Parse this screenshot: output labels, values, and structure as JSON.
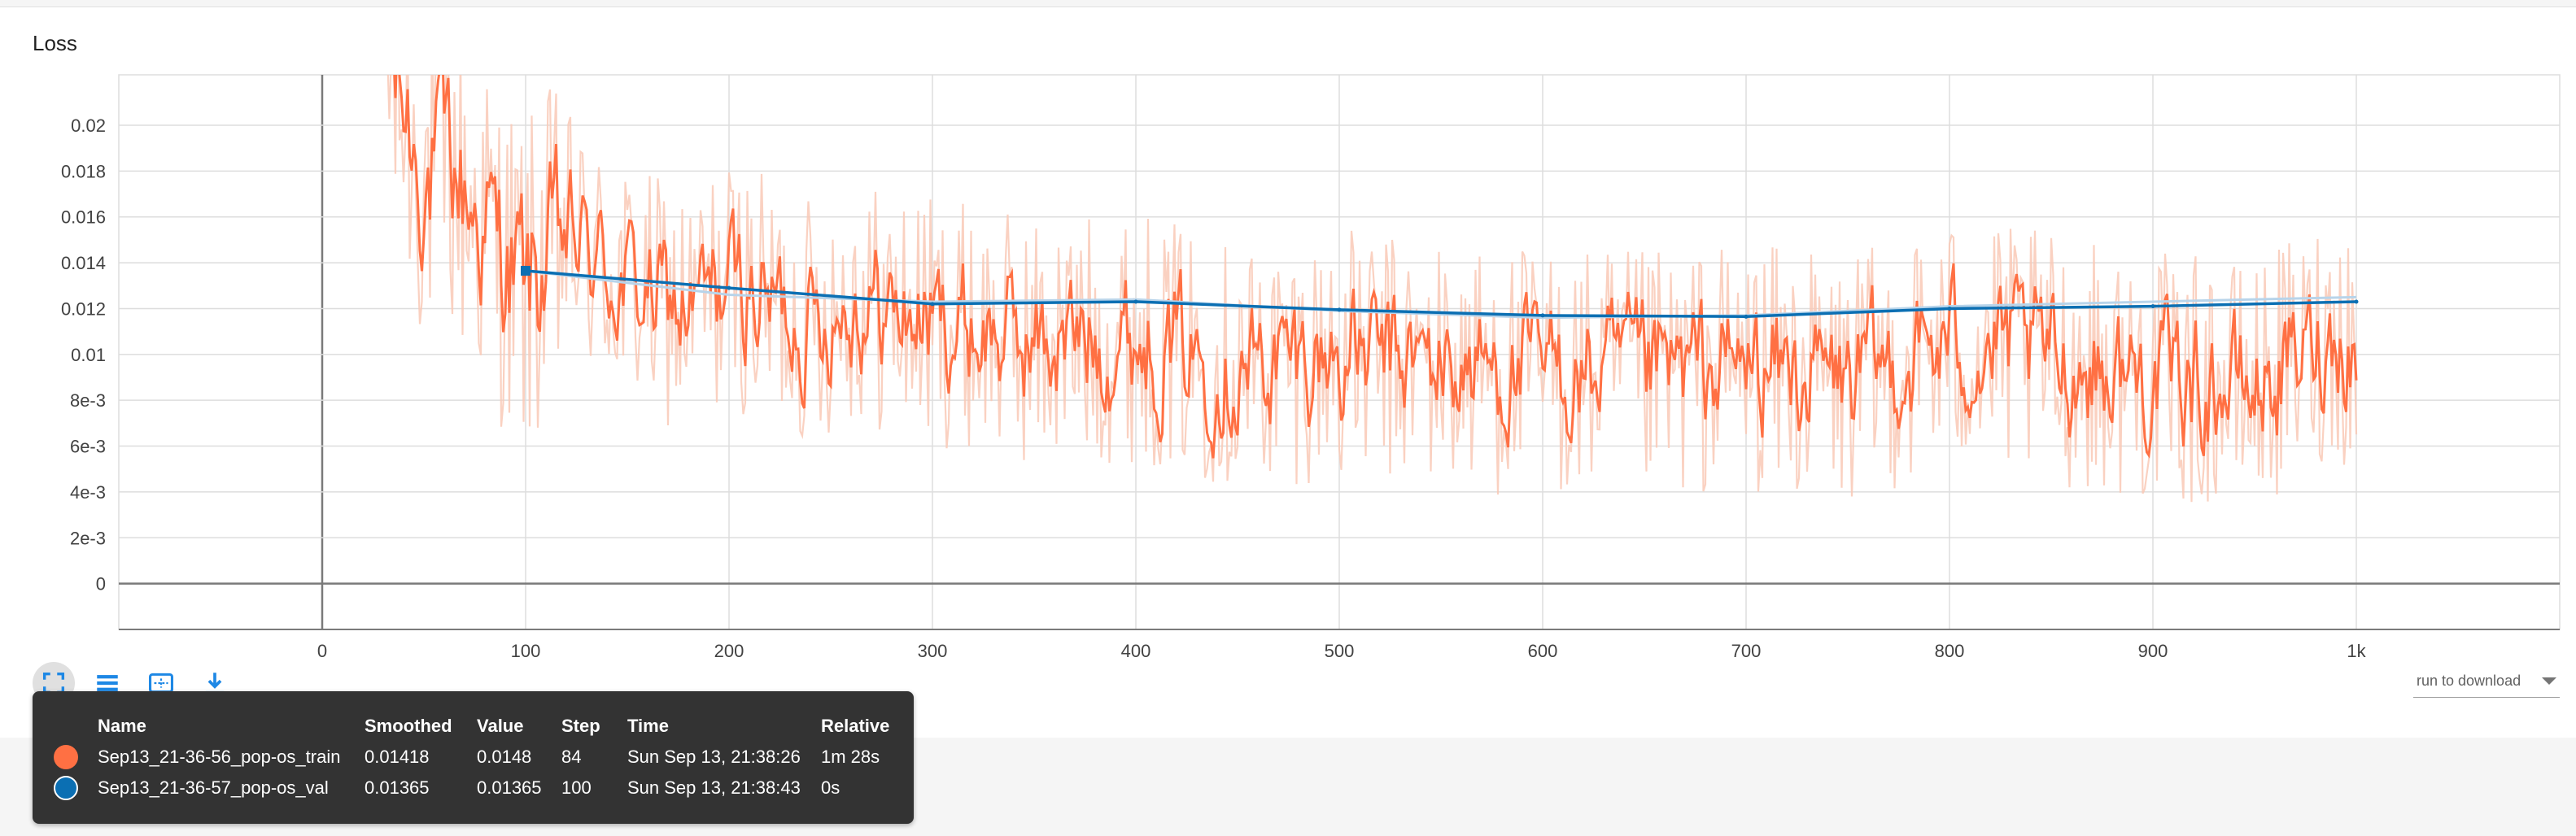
{
  "chart": {
    "title": "Loss",
    "download_label": "run to download",
    "colors": {
      "train_raw": "#f9c9b6",
      "train_smoothed": "#ff7043",
      "val_raw": "#b8d4ea",
      "val_smoothed": "#0b6fb3",
      "grid": "#dddddd",
      "axis": "#7a7a7a"
    }
  },
  "toolbar": {
    "icons": [
      "fit-domain-icon",
      "toggle-log-icon",
      "select-region-icon",
      "download-icon"
    ]
  },
  "tooltip": {
    "headers": {
      "name": "Name",
      "smoothed": "Smoothed",
      "value": "Value",
      "step": "Step",
      "time": "Time",
      "relative": "Relative"
    },
    "rows": [
      {
        "color": "#ff7043",
        "name": "Sep13_21-36-56_pop-os_train",
        "smoothed": "0.01418",
        "value": "0.0148",
        "step": "84",
        "time": "Sun Sep 13, 21:38:26",
        "relative": "1m 28s"
      },
      {
        "color": "#0b6fb3",
        "name": "Sep13_21-36-57_pop-os_val",
        "smoothed": "0.01365",
        "value": "0.01365",
        "step": "100",
        "time": "Sun Sep 13, 21:38:43",
        "relative": "0s"
      }
    ]
  },
  "chart_data": {
    "type": "line",
    "title": "Loss",
    "xlabel": "",
    "ylabel": "",
    "xlim": [
      -100,
      1100
    ],
    "ylim": [
      -0.002,
      0.0222
    ],
    "x_ticks": [
      0,
      100,
      200,
      300,
      400,
      500,
      600,
      700,
      800,
      900,
      1000
    ],
    "x_tick_labels": [
      "0",
      "100",
      "200",
      "300",
      "400",
      "500",
      "600",
      "700",
      "800",
      "900",
      "1k"
    ],
    "y_ticks": [
      0,
      0.002,
      0.004,
      0.006,
      0.008,
      0.01,
      0.012,
      0.014,
      0.016,
      0.018,
      0.02
    ],
    "y_tick_labels": [
      "0",
      "2e-3",
      "4e-3",
      "6e-3",
      "8e-3",
      "0.01",
      "0.012",
      "0.014",
      "0.016",
      "0.018",
      "0.02"
    ],
    "grid": true,
    "series": [
      {
        "name": "Sep13_21-36-56_pop-os_train",
        "smoothed_x": [
          30,
          40,
          50,
          60,
          70,
          80,
          90,
          100,
          120,
          140,
          160,
          180,
          200,
          220,
          240,
          260,
          280,
          300,
          350,
          400,
          450,
          500,
          550,
          600,
          650,
          700,
          750,
          800,
          850,
          900,
          950,
          990,
          1000
        ],
        "smoothed_y": [
          0.0228,
          0.0205,
          0.0175,
          0.0185,
          0.0168,
          0.0155,
          0.014,
          0.0128,
          0.0152,
          0.0135,
          0.0125,
          0.0118,
          0.0132,
          0.0122,
          0.0115,
          0.0125,
          0.0118,
          0.0115,
          0.0105,
          0.0108,
          0.0095,
          0.01,
          0.0095,
          0.0092,
          0.009,
          0.0095,
          0.0088,
          0.0105,
          0.0098,
          0.009,
          0.0085,
          0.011,
          0.01
        ]
      },
      {
        "name": "Sep13_21-36-57_pop-os_val",
        "x": [
          100,
          200,
          300,
          400,
          500,
          600,
          700,
          800,
          900,
          1000
        ],
        "smoothed_y": [
          0.01365,
          0.0129,
          0.0122,
          0.0123,
          0.01195,
          0.0117,
          0.01165,
          0.012,
          0.0121,
          0.0123
        ],
        "raw_y": [
          0.01365,
          0.0126,
          0.0123,
          0.0124,
          0.0119,
          0.0116,
          0.0117,
          0.0121,
          0.0123,
          0.0125
        ]
      }
    ]
  }
}
